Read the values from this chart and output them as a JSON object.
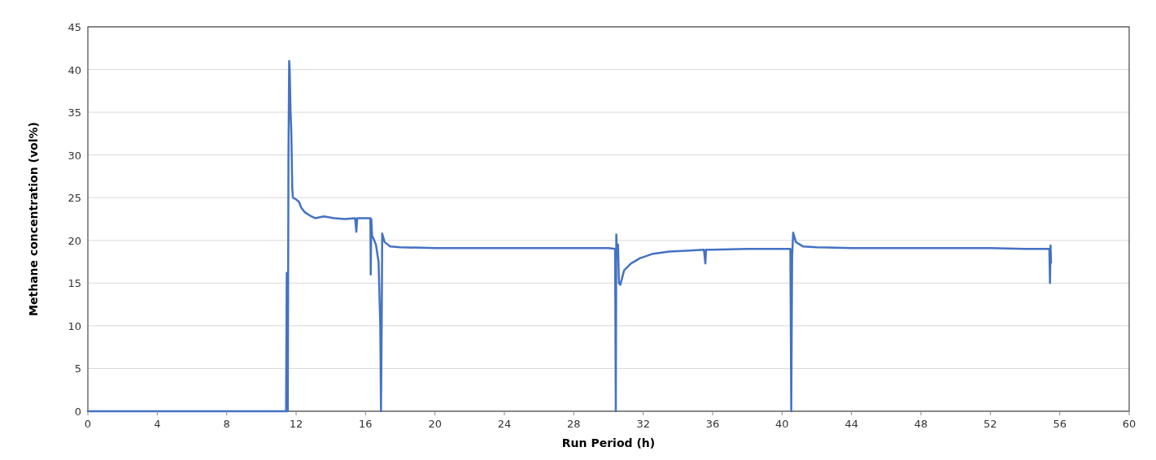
{
  "chart_data": {
    "type": "line",
    "xlabel": "Run Period (h)",
    "ylabel": "Methane concentration (vol%)",
    "xlim": [
      0,
      60
    ],
    "xticks": [
      0,
      4,
      8,
      12,
      16,
      20,
      24,
      28,
      32,
      36,
      40,
      44,
      48,
      52,
      56,
      60
    ],
    "ylim": [
      0,
      45
    ],
    "yticks": [
      0,
      5,
      10,
      15,
      20,
      25,
      30,
      35,
      40,
      45
    ],
    "grid": "y",
    "marker": "none",
    "line_style": "solid",
    "series": [
      {
        "color": "#4472c4",
        "x": [
          0,
          11.42,
          11.46,
          11.48,
          11.52,
          11.56,
          11.6,
          11.63,
          11.68,
          11.72,
          11.78,
          11.82,
          12.0,
          12.17,
          12.3,
          12.5,
          12.8,
          13.1,
          13.6,
          14.2,
          14.8,
          15.4,
          15.47,
          15.52,
          15.8,
          16.1,
          16.28,
          16.3,
          16.33,
          16.38,
          16.44,
          16.6,
          16.75,
          16.85,
          16.89,
          16.93,
          16.96,
          17.1,
          17.42,
          18,
          20,
          22,
          24,
          26,
          28,
          30,
          30.38,
          30.42,
          30.45,
          30.5,
          30.55,
          30.6,
          30.68,
          30.9,
          31.3,
          31.8,
          32.5,
          33.5,
          34.5,
          35.5,
          35.58,
          35.62,
          36,
          38,
          40,
          40.48,
          40.53,
          40.58,
          40.64,
          40.8,
          41.2,
          42,
          44,
          46,
          48,
          50,
          52,
          54,
          55.4,
          55.44,
          55.47,
          55.5
        ],
        "values": [
          0,
          0,
          16.2,
          0,
          0,
          30,
          41,
          40,
          35,
          33,
          26,
          25,
          24.8,
          24.5,
          23.8,
          23.3,
          22.9,
          22.6,
          22.8,
          22.6,
          22.5,
          22.6,
          21,
          22.6,
          22.6,
          22.6,
          22.6,
          16,
          22.5,
          20.5,
          20.3,
          19.5,
          17.5,
          10,
          0,
          10,
          20.8,
          19.8,
          19.3,
          19.2,
          19.1,
          19.1,
          19.1,
          19.1,
          19.1,
          19.1,
          19,
          0,
          20.7,
          18,
          19.5,
          15,
          14.8,
          16.5,
          17.3,
          17.9,
          18.4,
          18.7,
          18.8,
          18.9,
          17.3,
          18.9,
          18.9,
          19,
          19,
          19,
          0,
          18,
          20.9,
          19.8,
          19.3,
          19.2,
          19.1,
          19.1,
          19.1,
          19.1,
          19.1,
          19,
          19,
          15,
          19.4,
          17.4
        ]
      }
    ]
  }
}
